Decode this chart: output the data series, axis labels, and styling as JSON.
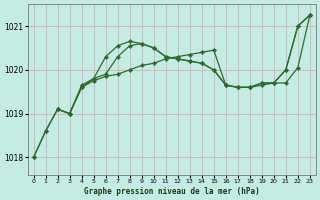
{
  "title": "Graphe pression niveau de la mer (hPa)",
  "background_color": "#c5ebe5",
  "grid_color_v": "#d4b8b8",
  "grid_color_h": "#d4b8b8",
  "line_color": "#2d6b2d",
  "xlim": [
    -0.5,
    23.5
  ],
  "ylim": [
    1017.6,
    1021.5
  ],
  "yticks": [
    1018,
    1019,
    1020,
    1021
  ],
  "xticks": [
    0,
    1,
    2,
    3,
    4,
    5,
    6,
    7,
    8,
    9,
    10,
    11,
    12,
    13,
    14,
    15,
    16,
    17,
    18,
    19,
    20,
    21,
    22,
    23
  ],
  "line1_x": [
    0,
    1,
    2,
    3,
    4,
    5,
    6,
    7,
    8,
    9,
    10,
    11,
    12,
    13,
    14,
    15,
    16,
    17,
    18,
    19,
    20,
    21,
    22,
    23
  ],
  "line1_y": [
    1018.0,
    1018.6,
    1019.1,
    1019.0,
    1019.6,
    1019.75,
    1019.85,
    1019.9,
    1020.0,
    1020.1,
    1020.15,
    1020.25,
    1020.3,
    1020.35,
    1020.4,
    1020.45,
    1019.65,
    1019.6,
    1019.6,
    1019.65,
    1019.7,
    1019.7,
    1020.05,
    1021.25
  ],
  "line2_x": [
    2,
    3,
    4,
    5,
    6,
    7,
    8,
    9,
    10,
    11,
    12,
    13,
    14,
    15,
    16,
    17,
    18,
    19,
    20,
    21,
    22,
    23
  ],
  "line2_y": [
    1019.1,
    1019.0,
    1019.65,
    1019.8,
    1020.3,
    1020.55,
    1020.65,
    1020.6,
    1020.5,
    1020.3,
    1020.25,
    1020.2,
    1020.15,
    1020.0,
    1019.65,
    1019.6,
    1019.6,
    1019.7,
    1019.7,
    1020.0,
    1021.0,
    1021.25
  ],
  "line3_x": [
    0,
    1,
    2,
    3,
    4,
    5,
    6,
    7,
    8,
    9,
    10,
    11,
    12,
    13,
    14,
    15,
    16,
    17,
    18,
    19,
    20,
    21,
    22,
    23
  ],
  "line3_y": [
    1018.0,
    1018.6,
    1019.1,
    1019.0,
    1019.6,
    1019.8,
    1019.9,
    1020.3,
    1020.55,
    1020.6,
    1020.5,
    1020.3,
    1020.25,
    1020.2,
    1020.15,
    1020.0,
    1019.65,
    1019.6,
    1019.6,
    1019.7,
    1019.7,
    1020.0,
    1021.0,
    1021.25
  ]
}
